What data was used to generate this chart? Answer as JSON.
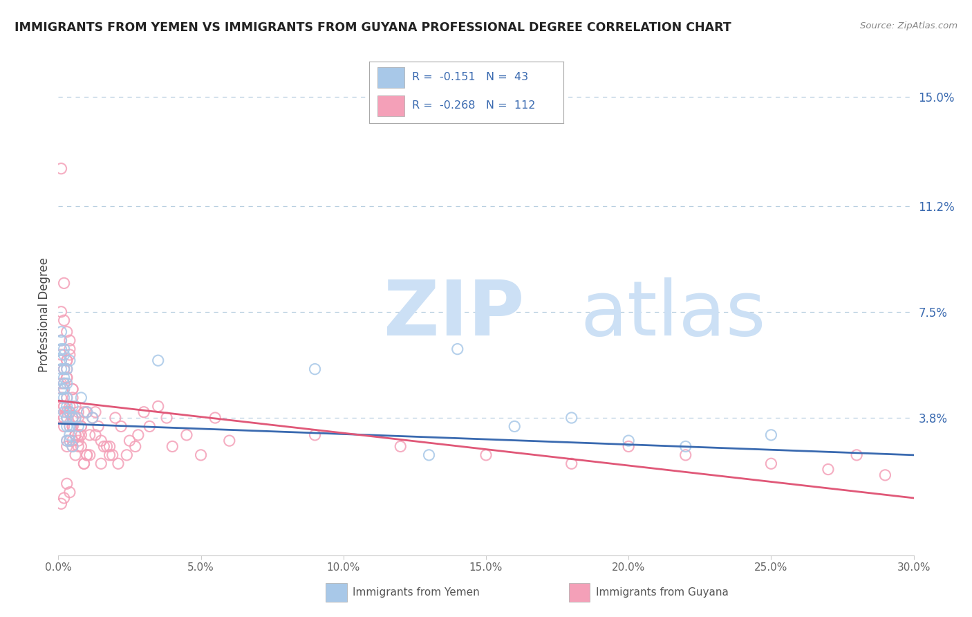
{
  "title": "IMMIGRANTS FROM YEMEN VS IMMIGRANTS FROM GUYANA PROFESSIONAL DEGREE CORRELATION CHART",
  "source": "Source: ZipAtlas.com",
  "ylabel": "Professional Degree",
  "xlim": [
    0.0,
    0.3
  ],
  "ylim": [
    -0.01,
    0.158
  ],
  "xtick_labels": [
    "0.0%",
    "5.0%",
    "10.0%",
    "15.0%",
    "20.0%",
    "25.0%",
    "30.0%"
  ],
  "xtick_vals": [
    0.0,
    0.05,
    0.1,
    0.15,
    0.2,
    0.25,
    0.3
  ],
  "right_ytick_labels": [
    "15.0%",
    "11.2%",
    "7.5%",
    "3.8%"
  ],
  "right_ytick_vals": [
    0.15,
    0.112,
    0.075,
    0.038
  ],
  "hline_vals": [
    0.15,
    0.112,
    0.075,
    0.038
  ],
  "legend_R1": "-0.151",
  "legend_N1": "43",
  "legend_R2": "-0.268",
  "legend_N2": "112",
  "color_yemen": "#a8c8e8",
  "color_guyana": "#f4a0b8",
  "color_blue": "#3a6ab0",
  "color_pink": "#e05878",
  "watermark_zip": "ZIP",
  "watermark_atlas": "atlas",
  "watermark_color": "#cce0f5",
  "trend_yemen_x0": 0.0,
  "trend_yemen_y0": 0.036,
  "trend_yemen_x1": 0.3,
  "trend_yemen_y1": 0.025,
  "trend_guyana_x0": 0.0,
  "trend_guyana_y0": 0.044,
  "trend_guyana_x1": 0.3,
  "trend_guyana_y1": 0.01,
  "yemen_x": [
    0.002,
    0.003,
    0.001,
    0.004,
    0.002,
    0.003,
    0.001,
    0.005,
    0.002,
    0.003,
    0.004,
    0.002,
    0.001,
    0.003,
    0.005,
    0.002,
    0.004,
    0.001,
    0.003,
    0.002,
    0.001,
    0.004,
    0.003,
    0.002,
    0.005,
    0.003,
    0.001,
    0.004,
    0.002,
    0.006,
    0.007,
    0.008,
    0.01,
    0.012,
    0.035,
    0.14,
    0.09,
    0.2,
    0.25,
    0.22,
    0.18,
    0.16,
    0.13
  ],
  "yemen_y": [
    0.062,
    0.055,
    0.048,
    0.058,
    0.045,
    0.038,
    0.068,
    0.042,
    0.05,
    0.035,
    0.04,
    0.06,
    0.055,
    0.03,
    0.038,
    0.048,
    0.032,
    0.065,
    0.042,
    0.052,
    0.058,
    0.035,
    0.045,
    0.04,
    0.028,
    0.05,
    0.062,
    0.03,
    0.055,
    0.038,
    0.035,
    0.045,
    0.04,
    0.038,
    0.058,
    0.062,
    0.055,
    0.03,
    0.032,
    0.028,
    0.038,
    0.035,
    0.025
  ],
  "guyana_x": [
    0.001,
    0.002,
    0.001,
    0.003,
    0.002,
    0.001,
    0.003,
    0.002,
    0.004,
    0.001,
    0.002,
    0.003,
    0.001,
    0.004,
    0.002,
    0.001,
    0.003,
    0.002,
    0.005,
    0.001,
    0.003,
    0.002,
    0.004,
    0.001,
    0.003,
    0.002,
    0.005,
    0.001,
    0.003,
    0.004,
    0.002,
    0.005,
    0.003,
    0.006,
    0.004,
    0.002,
    0.005,
    0.003,
    0.007,
    0.004,
    0.002,
    0.006,
    0.003,
    0.005,
    0.008,
    0.004,
    0.006,
    0.003,
    0.007,
    0.005,
    0.009,
    0.004,
    0.007,
    0.005,
    0.008,
    0.006,
    0.01,
    0.005,
    0.008,
    0.006,
    0.01,
    0.007,
    0.009,
    0.005,
    0.008,
    0.011,
    0.006,
    0.009,
    0.007,
    0.01,
    0.013,
    0.011,
    0.015,
    0.012,
    0.016,
    0.014,
    0.018,
    0.013,
    0.017,
    0.015,
    0.02,
    0.018,
    0.022,
    0.019,
    0.025,
    0.021,
    0.028,
    0.024,
    0.03,
    0.027,
    0.035,
    0.032,
    0.038,
    0.04,
    0.045,
    0.05,
    0.055,
    0.06,
    0.09,
    0.12,
    0.15,
    0.18,
    0.2,
    0.22,
    0.25,
    0.27,
    0.28,
    0.29,
    0.002,
    0.003,
    0.001,
    0.004
  ],
  "guyana_y": [
    0.125,
    0.085,
    0.075,
    0.068,
    0.072,
    0.065,
    0.058,
    0.055,
    0.06,
    0.05,
    0.048,
    0.052,
    0.045,
    0.062,
    0.042,
    0.058,
    0.04,
    0.055,
    0.048,
    0.06,
    0.052,
    0.042,
    0.065,
    0.038,
    0.055,
    0.035,
    0.048,
    0.042,
    0.058,
    0.04,
    0.05,
    0.035,
    0.045,
    0.032,
    0.042,
    0.038,
    0.045,
    0.03,
    0.04,
    0.035,
    0.038,
    0.042,
    0.028,
    0.038,
    0.035,
    0.04,
    0.032,
    0.038,
    0.028,
    0.035,
    0.04,
    0.03,
    0.038,
    0.028,
    0.035,
    0.025,
    0.04,
    0.03,
    0.032,
    0.038,
    0.025,
    0.032,
    0.022,
    0.038,
    0.028,
    0.025,
    0.032,
    0.022,
    0.03,
    0.025,
    0.04,
    0.032,
    0.03,
    0.038,
    0.028,
    0.035,
    0.025,
    0.032,
    0.028,
    0.022,
    0.038,
    0.028,
    0.035,
    0.025,
    0.03,
    0.022,
    0.032,
    0.025,
    0.04,
    0.028,
    0.042,
    0.035,
    0.038,
    0.028,
    0.032,
    0.025,
    0.038,
    0.03,
    0.032,
    0.028,
    0.025,
    0.022,
    0.028,
    0.025,
    0.022,
    0.02,
    0.025,
    0.018,
    0.01,
    0.015,
    0.008,
    0.012
  ]
}
